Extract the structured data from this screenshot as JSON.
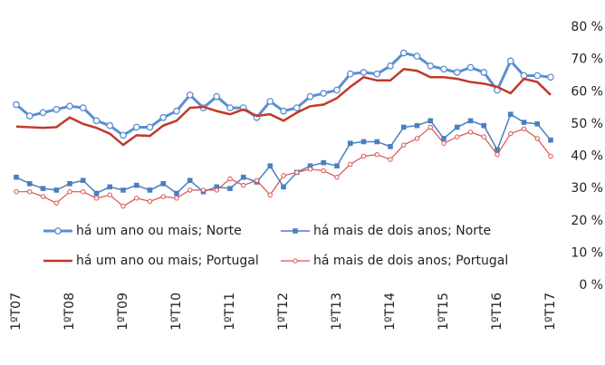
{
  "chart_data": {
    "type": "line",
    "categories": [
      "1ºT07",
      null,
      null,
      null,
      "1ºT08",
      null,
      null,
      null,
      "1ºT09",
      null,
      null,
      null,
      "1ºT10",
      null,
      null,
      null,
      "1ºT11",
      null,
      null,
      null,
      "1ºT12",
      null,
      null,
      null,
      "1ºT13",
      null,
      null,
      null,
      "1ºT14",
      null,
      null,
      null,
      "1ºT15",
      null,
      null,
      null,
      "1ºT16",
      null,
      null,
      null,
      "1ºT17"
    ],
    "series": [
      {
        "name": "há um ano ou mais; Norte",
        "color": "#5b8fd0",
        "width": 3,
        "marker": "circle",
        "values": [
          56,
          52.5,
          53.5,
          54.5,
          55.5,
          55,
          51,
          49.5,
          46.5,
          49,
          49,
          52,
          54,
          59,
          55,
          58.5,
          55,
          55,
          52,
          57,
          54,
          55,
          58.5,
          59.5,
          60.5,
          65.5,
          66,
          65.5,
          68,
          72,
          71,
          68,
          67,
          66,
          67.5,
          66,
          60.5,
          69.5,
          65,
          65,
          64.5
        ]
      },
      {
        "name": "há mais de dois anos; Norte",
        "color": "#4a7fc1",
        "width": 1.5,
        "marker": "square",
        "values": [
          33.5,
          31.5,
          30,
          29.5,
          31.5,
          32.5,
          28.5,
          30.5,
          29.5,
          31,
          29.5,
          31.5,
          28.5,
          32.5,
          29,
          30.5,
          30,
          33.5,
          32,
          37,
          30.5,
          35,
          37,
          38,
          37,
          44,
          44.5,
          44.5,
          43,
          49,
          49.5,
          51,
          45.5,
          49,
          51,
          49.5,
          42,
          53,
          50.5,
          50,
          45
        ]
      },
      {
        "name": "há um ano ou mais; Portugal",
        "color": "#c0392b",
        "width": 2.5,
        "marker": "none",
        "values": [
          49.2,
          49,
          48.8,
          49,
          52,
          50,
          48.8,
          47,
          43.5,
          46.5,
          46.3,
          49.5,
          51,
          55,
          55.3,
          54,
          53,
          54.5,
          52.5,
          53,
          51,
          53.5,
          55.5,
          56,
          58,
          61.5,
          64.5,
          63.5,
          63.5,
          67,
          66.5,
          64.5,
          64.5,
          64,
          63,
          62.5,
          61.5,
          59.5,
          64,
          63,
          59
        ]
      },
      {
        "name": "há mais de dois anos; Portugal",
        "color": "#d9534f",
        "width": 1.2,
        "marker": "small-circle",
        "values": [
          29,
          29,
          27.5,
          25.5,
          29,
          29,
          27,
          28,
          24.5,
          27,
          26,
          27.5,
          27,
          29.5,
          29.5,
          29.5,
          33,
          31,
          32.5,
          28,
          34,
          35,
          36,
          35.5,
          33.5,
          37.5,
          40,
          40.5,
          39,
          43.5,
          45.5,
          49,
          44,
          46,
          47.5,
          46,
          40.5,
          47,
          48.5,
          45.5,
          40
        ]
      }
    ],
    "ylim": [
      0,
      80
    ],
    "yticks": [
      {
        "value": 0,
        "label": "0 %"
      },
      {
        "value": 10,
        "label": "10 %"
      },
      {
        "value": 20,
        "label": "20 %"
      },
      {
        "value": 30,
        "label": "30 %"
      },
      {
        "value": 40,
        "label": "40 %"
      },
      {
        "value": 50,
        "label": "50 %"
      },
      {
        "value": 60,
        "label": "60 %"
      },
      {
        "value": 70,
        "label": "70 %"
      },
      {
        "value": 80,
        "label": "80 %"
      }
    ],
    "grid": false
  }
}
